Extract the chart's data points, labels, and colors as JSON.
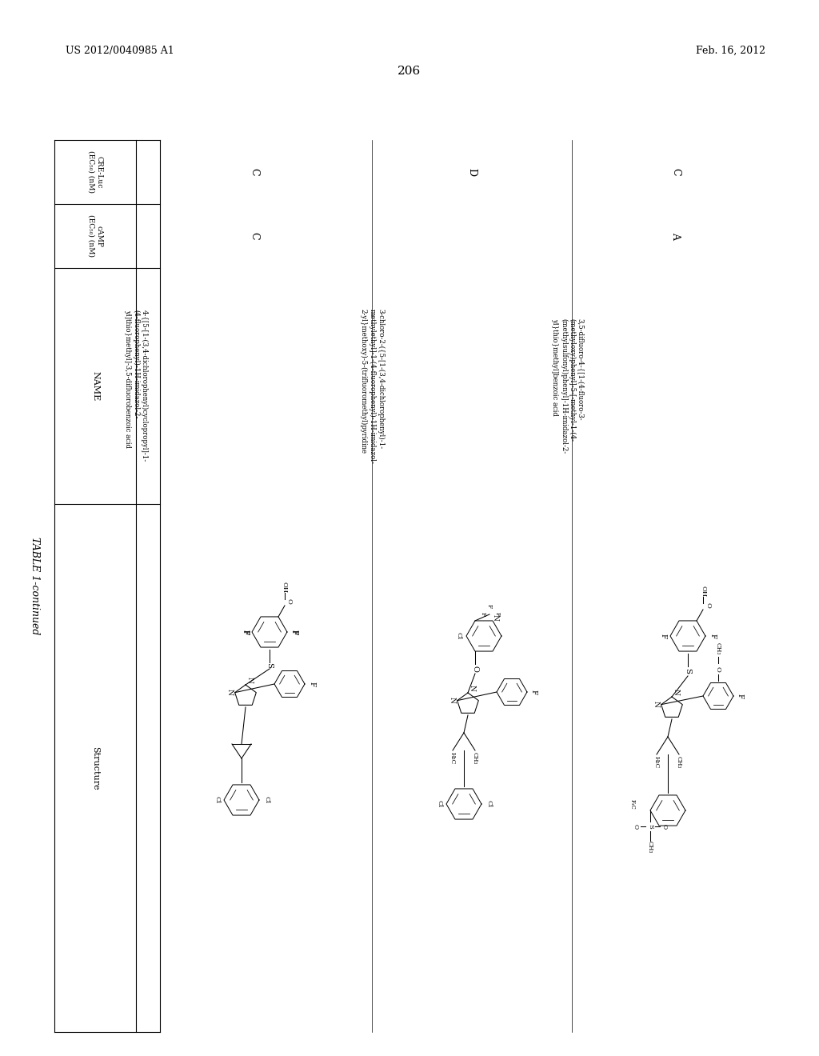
{
  "page_number": "206",
  "patent_number": "US 2012/0040985 A1",
  "patent_date": "Feb. 16, 2012",
  "table_title": "TABLE 1-continued",
  "bg": "#ffffff",
  "fg": "#000000",
  "col_header": [
    "Structure",
    "NAME",
    "cAMP\n(EC50) (nM)",
    "CRE-Luc\n(EC50) (nM)"
  ],
  "rows": [
    {
      "cAMP": "C",
      "CRE_Luc": "C",
      "name": "4-{[5-[1-(3,4-dichlorophenyl)cyclopropyl]-1-\n(4-fluorophenyl)-1H-imidazol-2-\nyl]thio}methyl]-3,5-difluorobenzoic acid"
    },
    {
      "cAMP": "",
      "CRE_Luc": "D",
      "name": "3-chloro-2-({5-[1-(3,4-dichlorophenyl)-1-\nmethylethyl]-1-(4-fluorophenyl)-1H-imidazol-\n2-yl}methoxy)-5-(trifluoromethyl)pyridine"
    },
    {
      "cAMP": "A",
      "CRE_Luc": "C",
      "name": "3,5-difluoro-4-{[1-(4-fluoro-3-\n(methyloxy)phenyl]-5-[-methyl-1-(4-\n(methylsulfonyl)phenyl]-1H-imidazol-2-\nyl}thio}methyl]benzoic acid"
    }
  ]
}
